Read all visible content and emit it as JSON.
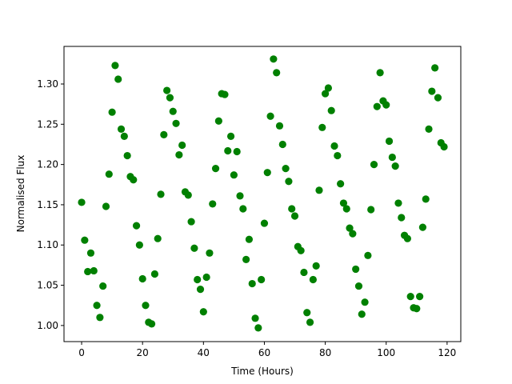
{
  "chart_data": {
    "type": "scatter",
    "x_label": "Time (Hours)",
    "y_label": "Normalised Flux",
    "color": "#008000",
    "x": [
      0,
      1,
      2,
      3,
      4,
      5,
      6,
      7,
      8,
      9,
      10,
      11,
      12,
      13,
      14,
      15,
      16,
      17,
      18,
      19,
      20,
      21,
      22,
      23,
      24,
      25,
      26,
      27,
      28,
      29,
      30,
      31,
      32,
      33,
      34,
      35,
      36,
      37,
      38,
      39,
      40,
      41,
      42,
      43,
      44,
      45,
      46,
      47,
      48,
      49,
      50,
      51,
      52,
      53,
      54,
      55,
      56,
      57,
      58,
      59,
      60,
      61,
      62,
      63,
      64,
      65,
      66,
      67,
      68,
      69,
      70,
      71,
      72,
      73,
      74,
      75,
      76,
      77,
      78,
      79,
      80,
      81,
      82,
      83,
      84,
      85,
      86,
      87,
      88,
      89,
      90,
      91,
      92,
      93,
      94,
      95,
      96,
      97,
      98,
      99,
      100,
      101,
      102,
      103,
      104,
      105,
      106,
      107,
      108,
      109,
      110,
      111,
      112,
      113,
      114,
      115,
      116,
      117,
      118,
      119
    ],
    "values": [
      1.153,
      1.106,
      1.067,
      1.09,
      1.068,
      1.025,
      1.01,
      1.049,
      1.148,
      1.188,
      1.265,
      1.323,
      1.306,
      1.244,
      1.235,
      1.211,
      1.185,
      1.181,
      1.124,
      1.1,
      1.058,
      1.025,
      1.004,
      1.002,
      1.064,
      1.108,
      1.163,
      1.237,
      1.292,
      1.283,
      1.266,
      1.251,
      1.212,
      1.224,
      1.166,
      1.162,
      1.129,
      1.096,
      1.057,
      1.045,
      1.017,
      1.06,
      1.09,
      1.151,
      1.195,
      1.254,
      1.288,
      1.287,
      1.217,
      1.235,
      1.187,
      1.216,
      1.161,
      1.145,
      1.082,
      1.107,
      1.052,
      1.009,
      0.997,
      1.057,
      1.127,
      1.19,
      1.26,
      1.331,
      1.314,
      1.248,
      1.225,
      1.195,
      1.179,
      1.145,
      1.136,
      1.098,
      1.093,
      1.066,
      1.016,
      1.004,
      1.057,
      1.074,
      1.168,
      1.246,
      1.288,
      1.295,
      1.267,
      1.223,
      1.211,
      1.176,
      1.152,
      1.145,
      1.121,
      1.114,
      1.07,
      1.049,
      1.014,
      1.029,
      1.087,
      1.144,
      1.2,
      1.272,
      1.314,
      1.279,
      1.274,
      1.229,
      1.209,
      1.198,
      1.152,
      1.134,
      1.112,
      1.108,
      1.036,
      1.022,
      1.021,
      1.036,
      1.122,
      1.157,
      1.244,
      1.291,
      1.32,
      1.283,
      1.227,
      1.222
    ],
    "xlim": [
      -5.79,
      124.5
    ],
    "ylim": [
      0.98,
      1.3467
    ],
    "xticks": [
      0,
      20,
      40,
      60,
      80,
      100,
      120
    ],
    "yticks": [
      {
        "value": 1,
        "label": "1.00"
      },
      1.05,
      {
        "value": 1.1,
        "label": "1.10"
      },
      1.15,
      {
        "value": 1.2,
        "label": "1.20"
      },
      1.25,
      {
        "value": 1.3,
        "label": "1.30"
      }
    ],
    "grid": false
  }
}
